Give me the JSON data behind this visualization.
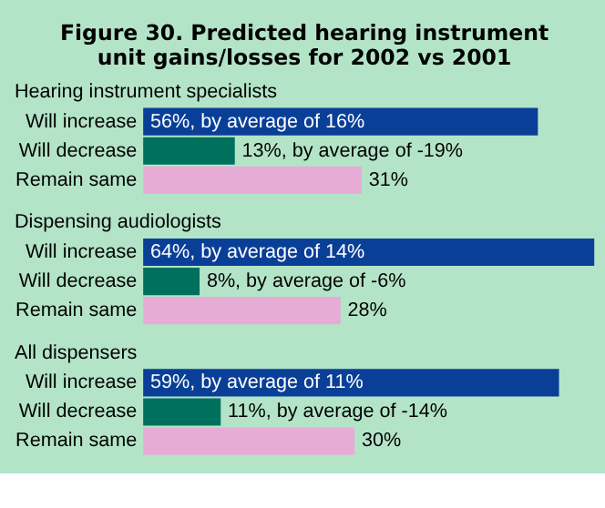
{
  "chart_data": [
    {
      "type": "bar",
      "orientation": "horizontal",
      "title": "Figure 30. Predicted hearing instrument unit gains/losses for 2002 vs 2001",
      "subtitle": "Hearing instrument specialists",
      "categories": [
        "Will increase",
        "Will decrease",
        "Remain same"
      ],
      "values": [
        56,
        13,
        31
      ],
      "colors": [
        "#0a3f98",
        "#00705e",
        "#e6acd6"
      ],
      "value_labels": [
        "56%, by average of 16%",
        "13%, by average of -19%",
        "31%"
      ]
    },
    {
      "type": "bar",
      "orientation": "horizontal",
      "subtitle": "Dispensing audiologists",
      "categories": [
        "Will increase",
        "Will decrease",
        "Remain same"
      ],
      "values": [
        64,
        8,
        28
      ],
      "colors": [
        "#0a3f98",
        "#00705e",
        "#e6acd6"
      ],
      "value_labels": [
        "64%, by average of 14%",
        "8%, by average of -6%",
        "28%"
      ]
    },
    {
      "type": "bar",
      "orientation": "horizontal",
      "subtitle": "All dispensers",
      "categories": [
        "Will increase",
        "Will decrease",
        "Remain same"
      ],
      "values": [
        59,
        11,
        30
      ],
      "colors": [
        "#0a3f98",
        "#00705e",
        "#e6acd6"
      ],
      "value_labels": [
        "59%, by average of 11%",
        "11%, by average of -14%",
        "30%"
      ]
    }
  ]
}
